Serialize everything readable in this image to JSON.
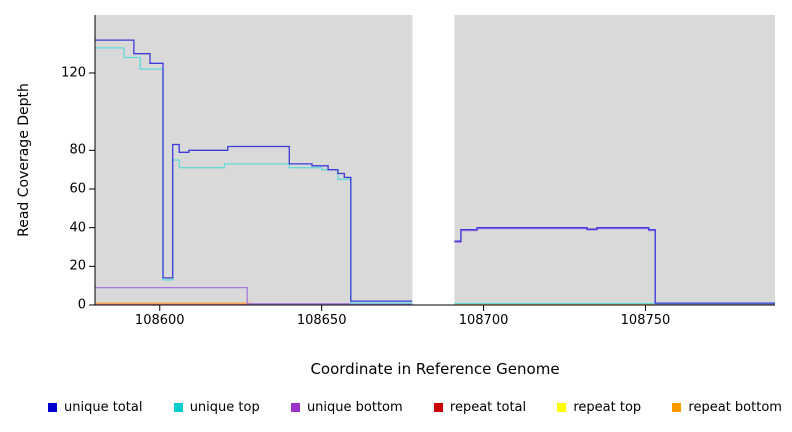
{
  "chart_data": {
    "type": "line",
    "title": "",
    "xlabel": "Coordinate in Reference Genome",
    "ylabel": "Read Coverage Depth",
    "x_ticks": [
      "108600",
      "108650",
      "108700",
      "108750"
    ],
    "x_tick_values": [
      108600,
      108650,
      108700,
      108750
    ],
    "y_ticks": [
      "0",
      "20",
      "40",
      "60",
      "80",
      "120"
    ],
    "y_tick_values": [
      0,
      20,
      40,
      60,
      80,
      120
    ],
    "x_range": [
      108580,
      108790
    ],
    "y_top_value": 150,
    "gap_region": [
      108678,
      108691
    ],
    "plot_bg_color": "#d9d9d9",
    "series": [
      {
        "name": "repeat top",
        "color": "#f0f060",
        "segments": [
          [
            [
              108580,
              0.2
            ],
            [
              108678,
              0.2
            ]
          ],
          [
            [
              108691,
              0.2
            ],
            [
              108790,
              0.2
            ]
          ]
        ]
      },
      {
        "name": "repeat total",
        "color": "#e08080",
        "segments": [
          [
            [
              108580,
              0.4
            ],
            [
              108678,
              0.4
            ]
          ],
          [
            [
              108691,
              0.4
            ],
            [
              108790,
              0.4
            ]
          ]
        ]
      },
      {
        "name": "repeat bottom",
        "color": "#ffb050",
        "segments": [
          [
            [
              108580,
              1
            ],
            [
              108628,
              1
            ],
            [
              108628,
              0.5
            ],
            [
              108678,
              0.5
            ]
          ],
          [
            [
              108691,
              0.5
            ],
            [
              108790,
              0.5
            ]
          ]
        ]
      },
      {
        "name": "unique bottom",
        "color": "#a878e0",
        "segments": [
          [
            [
              108580,
              9
            ],
            [
              108627,
              9
            ],
            [
              108627,
              0.6
            ],
            [
              108678,
              0.6
            ]
          ],
          [
            [
              108691,
              32.5
            ],
            [
              108693,
              32.5
            ],
            [
              108693,
              38.5
            ],
            [
              108698,
              38.5
            ],
            [
              108698,
              39.5
            ],
            [
              108751,
              39.5
            ],
            [
              108751,
              38.5
            ],
            [
              108753,
              38.5
            ],
            [
              108753,
              0.6
            ],
            [
              108790,
              0.6
            ]
          ]
        ]
      },
      {
        "name": "unique top",
        "color": "#66d9d9",
        "segments": [
          [
            [
              108580,
              133
            ],
            [
              108589,
              133
            ],
            [
              108589,
              128
            ],
            [
              108594,
              128
            ],
            [
              108594,
              122
            ],
            [
              108601,
              122
            ],
            [
              108601,
              13
            ],
            [
              108604,
              13
            ],
            [
              108604,
              75
            ],
            [
              108606,
              75
            ],
            [
              108606,
              71
            ],
            [
              108620,
              71
            ],
            [
              108620,
              73
            ],
            [
              108640,
              73
            ],
            [
              108640,
              71
            ],
            [
              108650,
              71
            ],
            [
              108650,
              70
            ],
            [
              108655,
              70
            ],
            [
              108655,
              65
            ],
            [
              108659,
              65
            ],
            [
              108659,
              1
            ],
            [
              108678,
              1
            ]
          ],
          [
            [
              108691,
              0.8
            ],
            [
              108790,
              0.8
            ]
          ]
        ]
      },
      {
        "name": "unique total",
        "color": "#3b3bd8",
        "segments": [
          [
            [
              108580,
              137
            ],
            [
              108592,
              137
            ],
            [
              108592,
              130
            ],
            [
              108597,
              130
            ],
            [
              108597,
              125
            ],
            [
              108601,
              125
            ],
            [
              108601,
              14
            ],
            [
              108604,
              14
            ],
            [
              108604,
              83
            ],
            [
              108606,
              83
            ],
            [
              108606,
              79
            ],
            [
              108609,
              79
            ],
            [
              108609,
              80
            ],
            [
              108621,
              80
            ],
            [
              108621,
              82
            ],
            [
              108640,
              82
            ],
            [
              108640,
              73
            ],
            [
              108647,
              73
            ],
            [
              108647,
              72
            ],
            [
              108652,
              72
            ],
            [
              108652,
              70
            ],
            [
              108655,
              70
            ],
            [
              108655,
              68
            ],
            [
              108657,
              68
            ],
            [
              108657,
              66
            ],
            [
              108659,
              66
            ],
            [
              108659,
              2
            ],
            [
              108678,
              2
            ]
          ],
          [
            [
              108691,
              33
            ],
            [
              108693,
              33
            ],
            [
              108693,
              39
            ],
            [
              108698,
              39
            ],
            [
              108698,
              40
            ],
            [
              108732,
              40
            ],
            [
              108732,
              39
            ],
            [
              108735,
              39
            ],
            [
              108735,
              40
            ],
            [
              108751,
              40
            ],
            [
              108751,
              39
            ],
            [
              108753,
              39
            ],
            [
              108753,
              1
            ],
            [
              108790,
              1
            ]
          ]
        ]
      }
    ]
  },
  "legend": {
    "items": [
      {
        "label": "unique total",
        "color": "#0000cc"
      },
      {
        "label": "unique top",
        "color": "#00cccc"
      },
      {
        "label": "unique bottom",
        "color": "#9933cc"
      },
      {
        "label": "repeat total",
        "color": "#cc0000"
      },
      {
        "label": "repeat top",
        "color": "#ffff00"
      },
      {
        "label": "repeat bottom",
        "color": "#ff9900"
      }
    ]
  }
}
